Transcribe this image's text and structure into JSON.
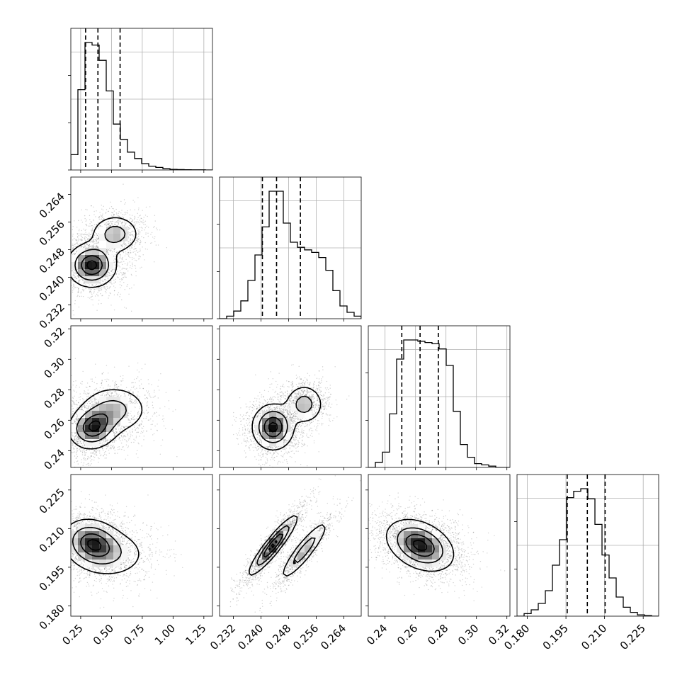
{
  "chart_data": {
    "type": "corner",
    "n_params": 4,
    "grid": true,
    "quantile_lines": "dashed",
    "quantiles": [
      [
        0.29,
        0.39,
        0.57
      ],
      [
        0.2404,
        0.2445,
        0.2514
      ],
      [
        0.251,
        0.263,
        0.275
      ],
      [
        0.1955,
        0.2033,
        0.2102
      ]
    ],
    "axes": [
      {
        "range": [
          0.17,
          1.32
        ],
        "ticks": [
          0.25,
          0.5,
          0.75,
          1.0,
          1.25
        ],
        "tick_labels": [
          "0.25",
          "0.50",
          "0.75",
          "1.00",
          "1.25"
        ]
      },
      {
        "range": [
          0.228,
          0.269
        ],
        "ticks": [
          0.232,
          0.24,
          0.248,
          0.256,
          0.264
        ],
        "tick_labels": [
          "0.232",
          "0.240",
          "0.248",
          "0.256",
          "0.264"
        ]
      },
      {
        "range": [
          0.229,
          0.322
        ],
        "ticks": [
          0.24,
          0.26,
          0.28,
          0.3,
          0.32
        ],
        "tick_labels": [
          "0.24",
          "0.26",
          "0.28",
          "0.30",
          "0.32"
        ]
      },
      {
        "range": [
          0.176,
          0.231
        ],
        "ticks": [
          0.18,
          0.195,
          0.21,
          0.225
        ],
        "tick_labels": [
          "0.180",
          "0.195",
          "0.210",
          "0.225"
        ]
      }
    ],
    "histograms": [
      {
        "bins": [
          0.17,
          1.32
        ],
        "heights": [
          0.12,
          0.63,
          1.0,
          0.98,
          0.86,
          0.62,
          0.36,
          0.24,
          0.14,
          0.09,
          0.05,
          0.03,
          0.02,
          0.01,
          0.005,
          0.003,
          0.002,
          0.001,
          0.001,
          0.0
        ]
      },
      {
        "bins": [
          0.228,
          0.269
        ],
        "heights": [
          0.0,
          0.02,
          0.06,
          0.14,
          0.3,
          0.5,
          0.72,
          1.0,
          1.0,
          0.75,
          0.6,
          0.56,
          0.54,
          0.52,
          0.48,
          0.38,
          0.22,
          0.1,
          0.05,
          0.02
        ]
      },
      {
        "bins": [
          0.229,
          0.322
        ],
        "heights": [
          0.0,
          0.04,
          0.12,
          0.42,
          0.85,
          1.0,
          1.0,
          0.99,
          0.98,
          0.97,
          0.93,
          0.8,
          0.44,
          0.18,
          0.08,
          0.03,
          0.02,
          0.01,
          0.0,
          0.0
        ]
      },
      {
        "bins": [
          0.176,
          0.231
        ],
        "heights": [
          0.0,
          0.02,
          0.05,
          0.1,
          0.2,
          0.4,
          0.6,
          0.93,
          0.98,
          1.0,
          0.92,
          0.72,
          0.48,
          0.3,
          0.15,
          0.07,
          0.03,
          0.01,
          0.005,
          0.0
        ]
      }
    ],
    "pairs": [
      {
        "i": 1,
        "j": 0,
        "components": [
          {
            "cx": 0.34,
            "cy": 0.2435,
            "sx": 0.1,
            "sy": 0.0032,
            "rho": 0.0,
            "w": 1.0
          },
          {
            "cx": 0.53,
            "cy": 0.2525,
            "sx": 0.1,
            "sy": 0.0028,
            "rho": 0.0,
            "w": 0.55
          }
        ]
      },
      {
        "i": 2,
        "j": 0,
        "components": [
          {
            "cx": 0.35,
            "cy": 0.255,
            "sx": 0.1,
            "sy": 0.007,
            "rho": 0.1,
            "w": 1.0
          },
          {
            "cx": 0.52,
            "cy": 0.267,
            "sx": 0.14,
            "sy": 0.008,
            "rho": 0.0,
            "w": 0.55
          }
        ]
      },
      {
        "i": 2,
        "j": 1,
        "components": [
          {
            "cx": 0.2435,
            "cy": 0.2555,
            "sx": 0.003,
            "sy": 0.0075,
            "rho": 0.0,
            "w": 1.0
          },
          {
            "cx": 0.2525,
            "cy": 0.2705,
            "sx": 0.0028,
            "sy": 0.0065,
            "rho": 0.0,
            "w": 0.55
          }
        ]
      },
      {
        "i": 3,
        "j": 0,
        "components": [
          {
            "cx": 0.34,
            "cy": 0.2045,
            "sx": 0.12,
            "sy": 0.0047,
            "rho": -0.15,
            "w": 1.0
          },
          {
            "cx": 0.5,
            "cy": 0.2,
            "sx": 0.16,
            "sy": 0.005,
            "rho": 0.0,
            "w": 0.4
          }
        ]
      },
      {
        "i": 3,
        "j": 1,
        "components": [
          {
            "cx": 0.2435,
            "cy": 0.2035,
            "sx": 0.0035,
            "sy": 0.0058,
            "rho": 0.92,
            "w": 1.0
          },
          {
            "cx": 0.2525,
            "cy": 0.2015,
            "sx": 0.0035,
            "sy": 0.0058,
            "rho": 0.9,
            "w": 0.6
          }
        ]
      },
      {
        "i": 3,
        "j": 2,
        "components": [
          {
            "cx": 0.263,
            "cy": 0.2035,
            "sx": 0.011,
            "sy": 0.005,
            "rho": -0.35,
            "w": 1.0
          }
        ]
      }
    ]
  }
}
